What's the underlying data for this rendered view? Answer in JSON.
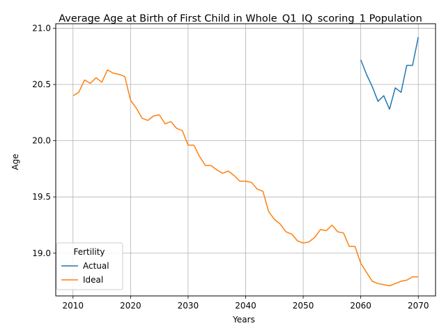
{
  "chart_data": {
    "type": "line",
    "title": "Average Age at Birth of First Child in Whole_Q1_IQ_scoring_1 Population",
    "xlabel": "Years",
    "ylabel": "Age",
    "xlim": [
      2007,
      2073
    ],
    "ylim": [
      18.62,
      21.04
    ],
    "xticks": [
      2010,
      2020,
      2030,
      2040,
      2050,
      2060,
      2070
    ],
    "xtick_labels": [
      "2010",
      "2020",
      "2030",
      "2040",
      "2050",
      "2060",
      "2070"
    ],
    "yticks": [
      19.0,
      19.5,
      20.0,
      20.5,
      21.0
    ],
    "ytick_labels": [
      "19.0",
      "19.5",
      "20.0",
      "20.5",
      "21.0"
    ],
    "grid": true,
    "legend": {
      "title": "Fertility",
      "placement": "lower-left"
    },
    "series": [
      {
        "name": "Actual",
        "color": "#1f77b4",
        "x": [
          2060,
          2061,
          2062,
          2063,
          2064,
          2065,
          2066,
          2067,
          2068,
          2069,
          2070
        ],
        "values": [
          20.72,
          20.59,
          20.48,
          20.35,
          20.4,
          20.28,
          20.47,
          20.43,
          20.67,
          20.67,
          20.92
        ]
      },
      {
        "name": "Ideal",
        "color": "#ff7f0e",
        "x": [
          2010,
          2011,
          2012,
          2013,
          2014,
          2015,
          2016,
          2017,
          2018,
          2019,
          2020,
          2021,
          2022,
          2023,
          2024,
          2025,
          2026,
          2027,
          2028,
          2029,
          2030,
          2031,
          2032,
          2033,
          2034,
          2035,
          2036,
          2037,
          2038,
          2039,
          2040,
          2041,
          2042,
          2043,
          2044,
          2045,
          2046,
          2047,
          2048,
          2049,
          2050,
          2051,
          2052,
          2053,
          2054,
          2055,
          2056,
          2057,
          2058,
          2059,
          2060,
          2061,
          2062,
          2063,
          2064,
          2065,
          2066,
          2067,
          2068,
          2069,
          2070
        ],
        "values": [
          20.4,
          20.43,
          20.54,
          20.51,
          20.56,
          20.52,
          20.63,
          20.6,
          20.59,
          20.57,
          20.36,
          20.29,
          20.2,
          20.18,
          20.22,
          20.23,
          20.15,
          20.17,
          20.11,
          20.09,
          19.96,
          19.96,
          19.86,
          19.78,
          19.78,
          19.74,
          19.71,
          19.73,
          19.69,
          19.64,
          19.64,
          19.63,
          19.57,
          19.55,
          19.37,
          19.3,
          19.26,
          19.19,
          19.17,
          19.11,
          19.09,
          19.1,
          19.14,
          19.21,
          19.2,
          19.25,
          19.19,
          19.18,
          19.06,
          19.06,
          18.91,
          18.83,
          18.75,
          18.73,
          18.72,
          18.71,
          18.73,
          18.75,
          18.76,
          18.79,
          18.79
        ]
      }
    ]
  }
}
